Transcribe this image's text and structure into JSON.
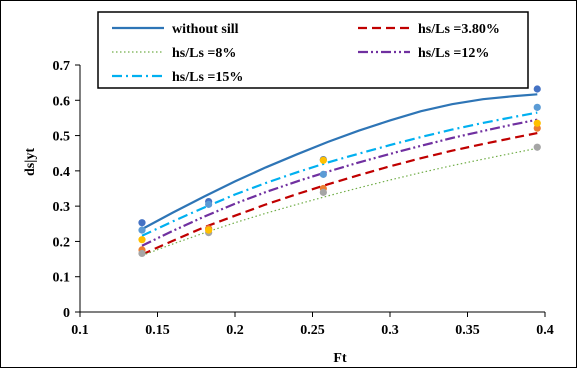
{
  "chart_data": {
    "type": "scatter",
    "xlabel": "Ft",
    "ylabel": "ds|yt",
    "xlim": [
      0.1,
      0.4
    ],
    "ylim": [
      0,
      0.7
    ],
    "xticks": [
      0.1,
      0.15,
      0.2,
      0.25,
      0.3,
      0.35,
      0.4
    ],
    "xtick_labels": [
      "0.1",
      "0.15",
      "0.2",
      "0.25",
      "0.3",
      "0.35",
      "0.4"
    ],
    "yticks": [
      0,
      0.1,
      0.2,
      0.3,
      0.4,
      0.5,
      0.6,
      0.7
    ],
    "ytick_labels": [
      "0",
      "0.1",
      "0.2",
      "0.3",
      "0.4",
      "0.5",
      "0.6",
      "0.7"
    ],
    "grid": false,
    "legend_position": "top",
    "series": [
      {
        "name": "without sill",
        "kind": "line",
        "style": "solid",
        "color": "#2e75b6",
        "curve_x": [
          0.14,
          0.16,
          0.18,
          0.2,
          0.22,
          0.24,
          0.26,
          0.28,
          0.3,
          0.32,
          0.34,
          0.36,
          0.38,
          0.395
        ],
        "curve_y": [
          0.235,
          0.282,
          0.327,
          0.37,
          0.41,
          0.447,
          0.482,
          0.514,
          0.543,
          0.569,
          0.589,
          0.603,
          0.612,
          0.617
        ],
        "points_x": [
          0.14,
          0.183,
          0.257,
          0.395
        ],
        "points_y": [
          0.253,
          0.313,
          0.432,
          0.632
        ],
        "marker_color": "#4472c4"
      },
      {
        "name": "hs/Ls =3.80%",
        "kind": "line",
        "style": "dash",
        "color": "#c00000",
        "curve_x": [
          0.14,
          0.16,
          0.18,
          0.2,
          0.22,
          0.24,
          0.26,
          0.28,
          0.3,
          0.32,
          0.34,
          0.36,
          0.38,
          0.395
        ],
        "curve_y": [
          0.163,
          0.202,
          0.24,
          0.273,
          0.305,
          0.334,
          0.362,
          0.388,
          0.413,
          0.436,
          0.457,
          0.476,
          0.494,
          0.507
        ],
        "points_x": [
          0.14,
          0.183,
          0.257,
          0.395
        ],
        "points_y": [
          0.176,
          0.236,
          0.35,
          0.521
        ],
        "marker_color": "#ed7d31"
      },
      {
        "name": "hs/Ls =8%",
        "kind": "line",
        "style": "dot",
        "color": "#70ad47",
        "curve_x": [
          0.14,
          0.16,
          0.18,
          0.2,
          0.22,
          0.24,
          0.26,
          0.28,
          0.3,
          0.32,
          0.34,
          0.36,
          0.38,
          0.395
        ],
        "curve_y": [
          0.16,
          0.193,
          0.224,
          0.253,
          0.28,
          0.305,
          0.329,
          0.352,
          0.374,
          0.395,
          0.415,
          0.433,
          0.451,
          0.464
        ],
        "points_x": [
          0.14,
          0.183,
          0.257,
          0.395
        ],
        "points_y": [
          0.166,
          0.225,
          0.339,
          0.467
        ],
        "marker_color": "#a5a5a5"
      },
      {
        "name": "hs/Ls =12%",
        "kind": "line",
        "style": "dashdotdot",
        "color": "#7030a0",
        "curve_x": [
          0.14,
          0.16,
          0.18,
          0.2,
          0.22,
          0.24,
          0.26,
          0.28,
          0.3,
          0.32,
          0.34,
          0.36,
          0.38,
          0.395
        ],
        "curve_y": [
          0.188,
          0.23,
          0.27,
          0.307,
          0.34,
          0.37,
          0.398,
          0.424,
          0.448,
          0.471,
          0.493,
          0.513,
          0.532,
          0.545
        ],
        "points_x": [
          0.14,
          0.183,
          0.257,
          0.395
        ],
        "points_y": [
          0.205,
          0.232,
          0.43,
          0.535
        ],
        "marker_color": "#ffc000"
      },
      {
        "name": "hs/Ls =15%",
        "kind": "line",
        "style": "dashdot",
        "color": "#00b0f0",
        "curve_x": [
          0.14,
          0.16,
          0.18,
          0.2,
          0.22,
          0.24,
          0.26,
          0.28,
          0.3,
          0.32,
          0.34,
          0.36,
          0.38,
          0.395
        ],
        "curve_y": [
          0.216,
          0.257,
          0.296,
          0.333,
          0.366,
          0.396,
          0.424,
          0.449,
          0.473,
          0.496,
          0.517,
          0.536,
          0.553,
          0.565
        ],
        "points_x": [
          0.14,
          0.183,
          0.257,
          0.395
        ],
        "points_y": [
          0.232,
          0.305,
          0.39,
          0.58
        ],
        "marker_color": "#5b9bd5"
      }
    ]
  }
}
